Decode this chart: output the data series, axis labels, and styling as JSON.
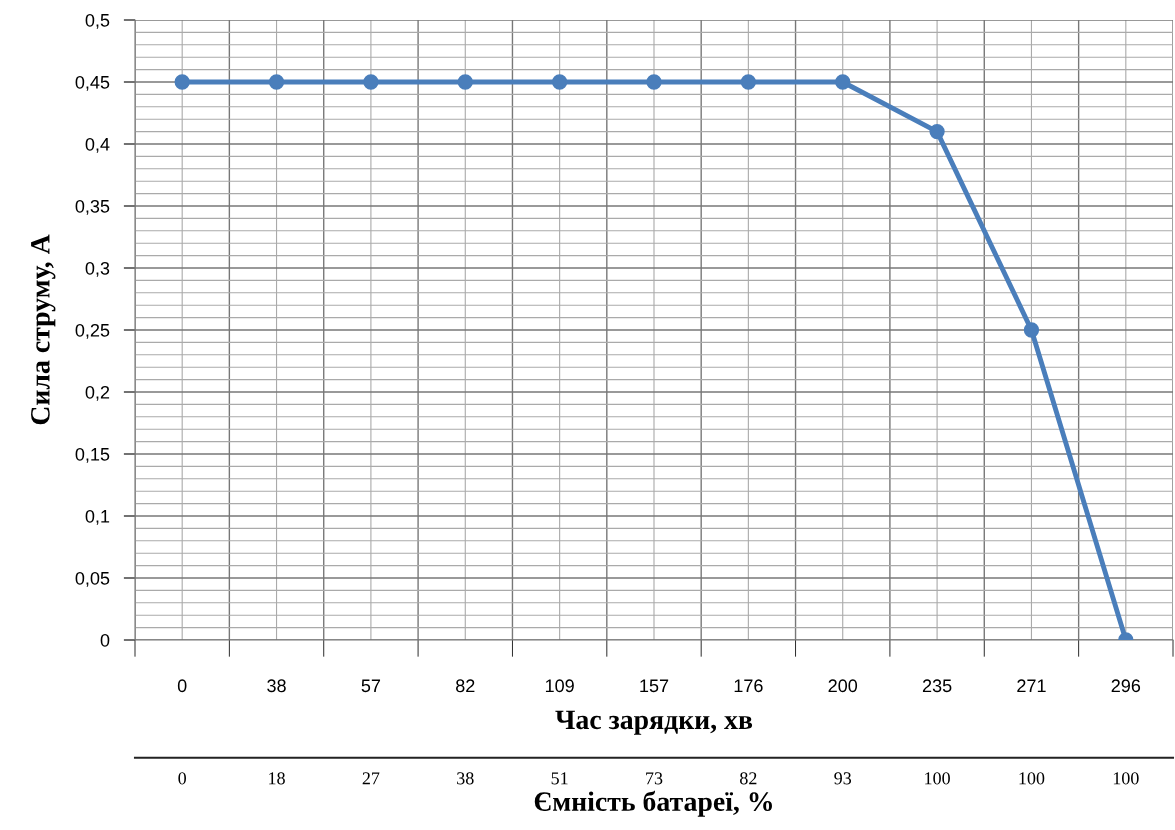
{
  "chart_data": {
    "type": "line",
    "xlabel": "Час зарядки, хв",
    "ylabel": "Сила струму, А",
    "x2label": "Ємність батареї, %",
    "categories": [
      "0",
      "38",
      "57",
      "82",
      "109",
      "157",
      "176",
      "200",
      "235",
      "271",
      "296"
    ],
    "annotations": [
      "0",
      "18",
      "27",
      "38",
      "51",
      "73",
      "82",
      "93",
      "100",
      "100",
      "100"
    ],
    "series": [
      {
        "color": "#4a7ebb",
        "values": [
          0.45,
          0.45,
          0.45,
          0.45,
          0.45,
          0.45,
          0.45,
          0.45,
          0.41,
          0.25,
          0
        ]
      }
    ],
    "ylim": [
      0,
      0.5
    ],
    "yticks": [
      {
        "value": 0,
        "label": "0"
      },
      {
        "value": 0.05,
        "label": "0,05"
      },
      {
        "value": 0.1,
        "label": "0,1"
      },
      {
        "value": 0.15,
        "label": "0,15"
      },
      {
        "value": 0.2,
        "label": "0,2"
      },
      {
        "value": 0.25,
        "label": "0,25"
      },
      {
        "value": 0.3,
        "label": "0,3"
      },
      {
        "value": 0.35,
        "label": "0,35"
      },
      {
        "value": 0.4,
        "label": "0,4"
      },
      {
        "value": 0.45,
        "label": "0,45"
      },
      {
        "value": 0.5,
        "label": "0,5"
      }
    ],
    "grid": true,
    "marker": "circle",
    "line_style": "solid",
    "legend": false
  }
}
